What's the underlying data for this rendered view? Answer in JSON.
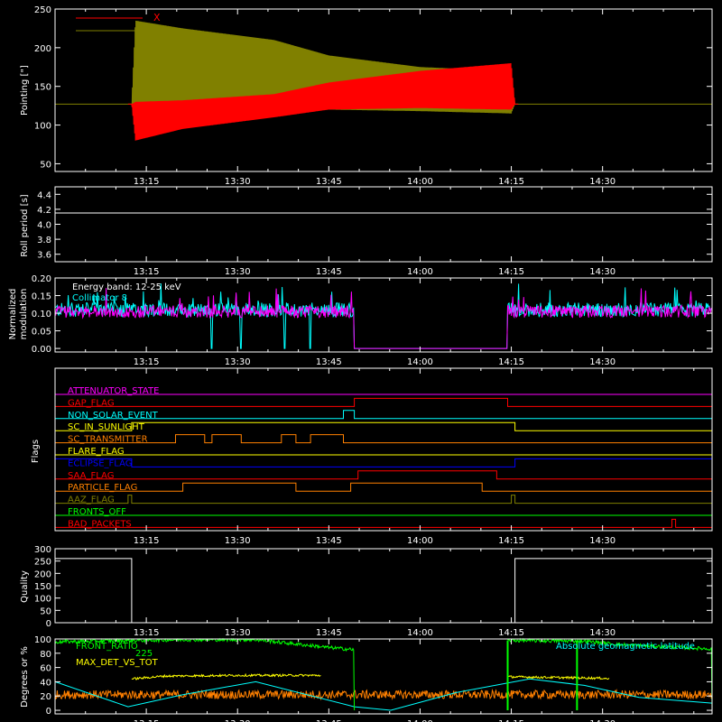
{
  "x_ticks": [
    "13:15",
    "13:30",
    "13:45",
    "14:00",
    "14:15",
    "14:30"
  ],
  "colors": {
    "background": "#000000",
    "axes": "#ffffff",
    "x_series": "#ff0000",
    "y_series": "#808000",
    "magenta": "#ff00ff",
    "cyan": "#00ffff",
    "yellow": "#ffff00",
    "green": "#00ff00",
    "orange": "#ff8000",
    "blue": "#0000ff"
  },
  "chart_data": [
    {
      "type": "line",
      "ylabel": "Pointing [\"]",
      "yticks": [
        50,
        100,
        150,
        200,
        250
      ],
      "ylim": [
        40,
        250
      ],
      "legend": [
        {
          "name": "X",
          "color": "#ff0000"
        },
        {
          "name": "Y",
          "color": "#808000"
        }
      ],
      "series": [
        {
          "name": "X",
          "color": "#ff0000",
          "baseline": 127,
          "envelope_time": [
            13.0,
            13.21,
            13.22,
            13.35,
            13.6,
            13.75,
            14.0,
            14.25,
            14.26,
            14.8
          ],
          "envelope_low": [
            127,
            127,
            80,
            95,
            110,
            120,
            122,
            120,
            127,
            127
          ],
          "envelope_high": [
            127,
            127,
            130,
            132,
            140,
            155,
            170,
            180,
            127,
            127
          ]
        },
        {
          "name": "Y",
          "color": "#808000",
          "baseline": 127,
          "envelope_time": [
            13.0,
            13.21,
            13.22,
            13.35,
            13.6,
            13.75,
            14.0,
            14.25,
            14.26,
            14.8
          ],
          "envelope_low": [
            127,
            127,
            112,
            110,
            115,
            120,
            118,
            115,
            127,
            127
          ],
          "envelope_high": [
            127,
            127,
            235,
            225,
            210,
            190,
            175,
            170,
            127,
            127
          ]
        }
      ]
    },
    {
      "type": "line",
      "ylabel": "Roll period [s]",
      "yticks": [
        3.6,
        3.8,
        4.0,
        4.2,
        4.4
      ],
      "ylim": [
        3.5,
        4.5
      ],
      "series": [
        {
          "name": "",
          "color": "#ffffff",
          "time": [
            13.0,
            14.8
          ],
          "values": [
            4.15,
            4.15
          ]
        }
      ]
    },
    {
      "type": "line",
      "ylabel": "Normalized modulation",
      "yticks": [
        0.0,
        0.05,
        0.1,
        0.15,
        0.2
      ],
      "ylim": [
        -0.01,
        0.2
      ],
      "annotations": [
        "Energy band: 12-25 keV",
        "Collimator 8"
      ],
      "series": [
        {
          "name": "Collimator 8",
          "color": "#00ffff",
          "level": 0.11,
          "dropouts": [
            13.43,
            13.51,
            13.63,
            13.7
          ]
        },
        {
          "name": "",
          "color": "#ff00ff",
          "level": 0.105,
          "gap": [
            13.82,
            14.24
          ]
        }
      ]
    },
    {
      "type": "step",
      "ylabel": "Flags",
      "flags": [
        {
          "name": "ATTENUATOR_STATE",
          "color": "#ff00ff",
          "high": []
        },
        {
          "name": "GAP_FLAG",
          "color": "#ff0000",
          "high": [
            [
              13.82,
              14.24
            ]
          ]
        },
        {
          "name": "NON_SOLAR_EVENT",
          "color": "#00ffff",
          "high": [
            [
              13.79,
              13.82
            ]
          ]
        },
        {
          "name": "SC_IN_SUNLIGHT",
          "color": "#ffff00",
          "high": [
            [
              13.21,
              14.26
            ]
          ]
        },
        {
          "name": "SC_TRANSMITTER",
          "color": "#ff8000",
          "high": [
            [
              13.33,
              13.41
            ],
            [
              13.43,
              13.51
            ],
            [
              13.62,
              13.66
            ],
            [
              13.7,
              13.79
            ]
          ]
        },
        {
          "name": "FLARE_FLAG",
          "color": "#ffff00",
          "high": []
        },
        {
          "name": "ECLIPSE_FLAG",
          "color": "#0000ff",
          "high": [
            [
              13.0,
              13.21
            ],
            [
              14.26,
              14.8
            ]
          ]
        },
        {
          "name": "SAA_FLAG",
          "color": "#ff0000",
          "high": [
            [
              13.83,
              14.21
            ]
          ]
        },
        {
          "name": "PARTICLE_FLAG",
          "color": "#ff8000",
          "high": [
            [
              13.35,
              13.66
            ],
            [
              13.81,
              14.17
            ]
          ]
        },
        {
          "name": "AAZ_FLAG",
          "color": "#808000",
          "high": [
            [
              13.2,
              13.21
            ],
            [
              14.25,
              14.26
            ]
          ]
        },
        {
          "name": "FRONTS_OFF",
          "color": "#00ff00",
          "high": []
        },
        {
          "name": "BAD_PACKETS",
          "color": "#ff0000",
          "high": [
            [
              14.69,
              14.7
            ]
          ]
        }
      ]
    },
    {
      "type": "line",
      "ylabel": "Quality",
      "yticks": [
        0,
        50,
        100,
        150,
        200,
        250,
        300
      ],
      "ylim": [
        0,
        300
      ],
      "series": [
        {
          "name": "",
          "color": "#ffffff",
          "time": [
            13.0,
            13.21,
            13.21,
            14.26,
            14.26,
            14.8
          ],
          "values": [
            260,
            260,
            0,
            0,
            260,
            260
          ]
        }
      ]
    },
    {
      "type": "line",
      "ylabel": "Degrees or %",
      "yticks": [
        0,
        20,
        40,
        60,
        80,
        100
      ],
      "ylim": [
        -5,
        100
      ],
      "labels": [
        "FRONT_RATIO",
        "225",
        "MAX_DET_VS_TOT",
        "Absolute geomagnetic latitude"
      ],
      "series": [
        {
          "name": "FRONT_RATIO",
          "color": "#00ff00",
          "segments": [
            [
              [
                13.0,
                96
              ],
              [
                13.35,
                99
              ],
              [
                13.55,
                99
              ],
              [
                13.75,
                88
              ],
              [
                13.82,
                85
              ]
            ],
            [
              [
                14.24,
                98
              ],
              [
                14.45,
                97
              ],
              [
                14.55,
                92
              ],
              [
                14.8,
                86
              ]
            ]
          ]
        },
        {
          "name": "MAX_DET_VS_TOT",
          "color": "#ffff00",
          "segments": [
            [
              [
                13.21,
                44
              ],
              [
                13.3,
                48
              ],
              [
                13.5,
                49
              ],
              [
                13.7,
                49
              ],
              [
                13.73,
                49
              ]
            ],
            [
              [
                14.24,
                47
              ],
              [
                14.5,
                45
              ],
              [
                14.52,
                44
              ]
            ]
          ]
        },
        {
          "name": "",
          "color": "#ff8000",
          "level": 22
        },
        {
          "name": "Absolute geomagnetic latitude",
          "color": "#00ffff",
          "points": [
            [
              13.0,
              40
            ],
            [
              13.2,
              5
            ],
            [
              13.35,
              22
            ],
            [
              13.55,
              40
            ],
            [
              13.82,
              5
            ],
            [
              13.92,
              0
            ],
            [
              14.1,
              25
            ],
            [
              14.3,
              44
            ],
            [
              14.45,
              35
            ],
            [
              14.6,
              18
            ],
            [
              14.8,
              10
            ]
          ]
        }
      ]
    }
  ]
}
